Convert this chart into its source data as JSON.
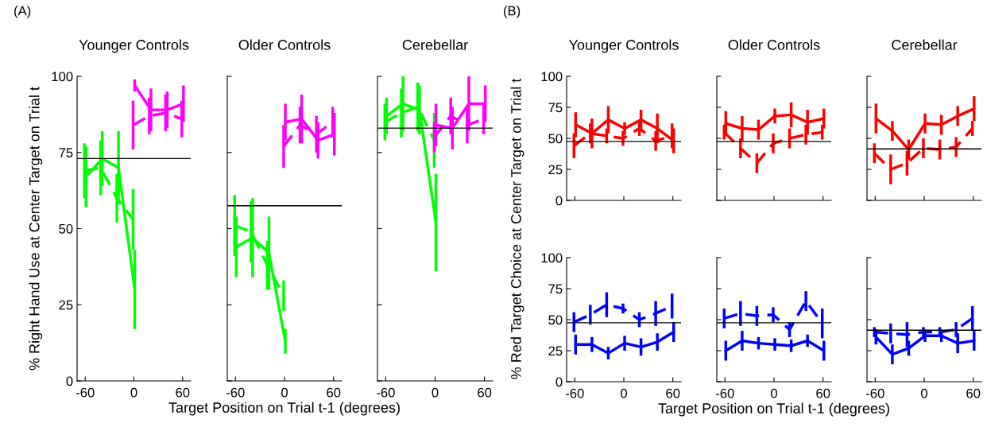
{
  "chart_data": [
    {
      "type": "line",
      "title": "Younger Controls",
      "ylabel": "% Right Hand Use at Center Target on Trial t",
      "annotations": [
        "(A)"
      ],
      "xlim": [
        -70,
        70
      ],
      "xticks": [
        -60,
        0,
        60
      ],
      "ylim": [
        0,
        100
      ],
      "yticks": [
        0,
        25,
        50,
        75,
        100
      ],
      "ref_lines": [
        {
          "axis": "y",
          "value": 73,
          "color": "#000000"
        }
      ],
      "series": [
        {
          "color": "#00ff00",
          "line_style": "solid",
          "x": [
            -59,
            -39,
            -19,
            1
          ],
          "values": [
            67,
            73,
            70,
            30
          ],
          "errors": [
            10,
            9,
            12,
            13
          ]
        },
        {
          "color": "#00ff00",
          "line_style": "dashed",
          "x": [
            -61,
            -41,
            -21,
            -1
          ],
          "values": [
            69,
            70,
            60,
            53
          ],
          "errors": [
            9,
            9,
            8,
            10
          ]
        },
        {
          "color": "#ff00ff",
          "line_style": "solid",
          "x": [
            1,
            21,
            41,
            61
          ],
          "values": [
            97,
            89,
            89,
            91
          ],
          "errors": [
            2,
            7,
            6,
            6
          ]
        },
        {
          "color": "#ff00ff",
          "line_style": "dashed",
          "x": [
            -1,
            19,
            39,
            59
          ],
          "values": [
            84,
            87,
            88,
            86
          ],
          "errors": [
            8,
            6,
            6,
            6
          ]
        }
      ]
    },
    {
      "type": "line",
      "title": "Older Controls",
      "xlabel": "Target Position on Trial t-1 (degrees)",
      "tick_labels": "x",
      "xlim": [
        -70,
        70
      ],
      "xticks": [
        -60,
        0,
        60
      ],
      "ylim": [
        0,
        100
      ],
      "yticks": [
        0,
        25,
        50,
        75,
        100
      ],
      "ref_lines": [
        {
          "axis": "y",
          "value": 57.5,
          "color": "#000000"
        }
      ],
      "series": [
        {
          "color": "#00ff00",
          "line_style": "solid",
          "x": [
            -59,
            -39,
            -19,
            1
          ],
          "values": [
            44,
            47,
            42,
            13
          ],
          "errors": [
            10,
            13,
            12,
            4
          ]
        },
        {
          "color": "#00ff00",
          "line_style": "dashed",
          "x": [
            -61,
            -41,
            -21,
            -1
          ],
          "values": [
            51,
            49,
            38,
            28
          ],
          "errors": [
            10,
            10,
            8,
            5
          ]
        },
        {
          "color": "#ff00ff",
          "line_style": "solid",
          "x": [
            1,
            21,
            41,
            61
          ],
          "values": [
            85,
            86,
            79,
            81
          ],
          "errors": [
            6,
            8,
            6,
            7
          ]
        },
        {
          "color": "#ff00ff",
          "line_style": "dashed",
          "x": [
            -1,
            19,
            39,
            59
          ],
          "values": [
            77,
            84,
            81,
            85
          ],
          "errors": [
            7,
            6,
            6,
            5
          ]
        }
      ]
    },
    {
      "type": "line",
      "title": "Cerebellar",
      "tick_labels": "x",
      "xlim": [
        -70,
        70
      ],
      "xticks": [
        -60,
        0,
        60
      ],
      "ylim": [
        0,
        100
      ],
      "yticks": [
        0,
        25,
        50,
        75,
        100
      ],
      "ref_lines": [
        {
          "axis": "y",
          "value": 83,
          "color": "#000000"
        }
      ],
      "series": [
        {
          "color": "#00ff00",
          "line_style": "solid",
          "x": [
            -59,
            -39,
            -19,
            1
          ],
          "values": [
            87,
            91,
            89,
            52
          ],
          "errors": [
            6,
            9,
            8,
            16
          ]
        },
        {
          "color": "#00ff00",
          "line_style": "dashed",
          "x": [
            -61,
            -41,
            -21,
            -1
          ],
          "values": [
            85,
            88,
            90,
            79
          ],
          "errors": [
            6,
            8,
            8,
            9
          ]
        },
        {
          "color": "#ff00ff",
          "line_style": "solid",
          "x": [
            1,
            21,
            41,
            61
          ],
          "values": [
            84,
            83,
            91,
            91
          ],
          "errors": [
            7,
            7,
            9,
            6
          ]
        },
        {
          "color": "#ff00ff",
          "line_style": "dashed",
          "x": [
            -1,
            19,
            39,
            59
          ],
          "values": [
            80,
            87,
            84,
            86
          ],
          "errors": [
            5,
            6,
            6,
            5
          ]
        }
      ]
    },
    {
      "type": "line",
      "title": "Younger Controls",
      "ylabel": "% Red Target Choice at Center Target on Trial t",
      "annotations": [
        "(B)"
      ],
      "tick_labels": "y",
      "xlim": [
        -70,
        70
      ],
      "xticks": [
        -60,
        0,
        60
      ],
      "ylim": [
        0,
        100
      ],
      "yticks": [
        0,
        25,
        50,
        75,
        100
      ],
      "ref_lines": [
        {
          "axis": "y",
          "value": 47.5,
          "color": "#000000"
        }
      ],
      "series": [
        {
          "color": "#ff0000",
          "line_style": "solid",
          "x": [
            -59,
            -39,
            -19,
            1,
            21,
            41,
            61
          ],
          "values": [
            61,
            54,
            65,
            58,
            65,
            58,
            48
          ],
          "errors": [
            10,
            12,
            11,
            5,
            8,
            12,
            10
          ]
        },
        {
          "color": "#ff0000",
          "line_style": "dashed",
          "x": [
            -61,
            -41,
            -21,
            -1,
            19,
            39,
            59
          ],
          "values": [
            44,
            54,
            52,
            50,
            58,
            48,
            52
          ],
          "errors": [
            10,
            8,
            6,
            6,
            6,
            8,
            10
          ]
        }
      ]
    },
    {
      "type": "line",
      "title": "Older Controls",
      "tick_labels": false,
      "xlim": [
        -70,
        70
      ],
      "xticks": [
        -60,
        0,
        60
      ],
      "ylim": [
        0,
        100
      ],
      "yticks": [
        0,
        25,
        50,
        75,
        100
      ],
      "ref_lines": [
        {
          "axis": "y",
          "value": 47.5,
          "color": "#000000"
        }
      ],
      "series": [
        {
          "color": "#ff0000",
          "line_style": "solid",
          "x": [
            -59,
            -39,
            -19,
            1,
            21,
            41,
            61
          ],
          "values": [
            62,
            58,
            57,
            68,
            69,
            63,
            66
          ],
          "errors": [
            10,
            10,
            8,
            6,
            10,
            10,
            8
          ]
        },
        {
          "color": "#ff0000",
          "line_style": "dashed",
          "x": [
            -61,
            -41,
            -21,
            -1,
            19,
            39,
            59
          ],
          "values": [
            55,
            42,
            30,
            46,
            50,
            53,
            55
          ],
          "errors": [
            6,
            8,
            8,
            8,
            8,
            8,
            6
          ]
        }
      ]
    },
    {
      "type": "line",
      "title": "Cerebellar",
      "tick_labels": false,
      "xlim": [
        -70,
        70
      ],
      "xticks": [
        -60,
        0,
        60
      ],
      "ylim": [
        0,
        100
      ],
      "yticks": [
        0,
        25,
        50,
        75,
        100
      ],
      "ref_lines": [
        {
          "axis": "y",
          "value": 41.5,
          "color": "#000000"
        }
      ],
      "series": [
        {
          "color": "#ff0000",
          "line_style": "solid",
          "x": [
            -59,
            -39,
            -19,
            1,
            21,
            41,
            61
          ],
          "values": [
            66,
            56,
            41,
            62,
            61,
            68,
            74
          ],
          "errors": [
            12,
            8,
            8,
            8,
            8,
            8,
            10
          ]
        },
        {
          "color": "#ff0000",
          "line_style": "dashed",
          "x": [
            -61,
            -41,
            -21,
            -1,
            19,
            39,
            59
          ],
          "values": [
            38,
            25,
            30,
            42,
            41,
            43,
            58
          ],
          "errors": [
            8,
            12,
            10,
            8,
            8,
            8,
            6
          ]
        }
      ]
    },
    {
      "type": "line",
      "xlim": [
        -70,
        70
      ],
      "xticks": [
        -60,
        0,
        60
      ],
      "ylim": [
        0,
        100
      ],
      "yticks": [
        0,
        25,
        50,
        75,
        100
      ],
      "ref_lines": [
        {
          "axis": "y",
          "value": 47.5,
          "color": "#000000"
        }
      ],
      "series": [
        {
          "color": "#0000ff",
          "line_style": "solid",
          "x": [
            -59,
            -39,
            -19,
            1,
            21,
            41,
            61
          ],
          "values": [
            30,
            30,
            23,
            31,
            28,
            32,
            40
          ],
          "errors": [
            8,
            6,
            5,
            6,
            7,
            7,
            8
          ]
        },
        {
          "color": "#0000ff",
          "line_style": "dashed",
          "x": [
            -61,
            -41,
            -21,
            -1,
            19,
            39,
            59
          ],
          "values": [
            48,
            54,
            62,
            59,
            50,
            55,
            61
          ],
          "errors": [
            8,
            8,
            10,
            4,
            6,
            10,
            10
          ]
        }
      ]
    },
    {
      "type": "line",
      "xlabel": "Target Position on Trial t-1 (degrees)",
      "tick_labels": "x",
      "xlim": [
        -70,
        70
      ],
      "xticks": [
        -60,
        0,
        60
      ],
      "ylim": [
        0,
        100
      ],
      "yticks": [
        0,
        25,
        50,
        75,
        100
      ],
      "ref_lines": [
        {
          "axis": "y",
          "value": 47.5,
          "color": "#000000"
        }
      ],
      "series": [
        {
          "color": "#0000ff",
          "line_style": "solid",
          "x": [
            -59,
            -39,
            -19,
            1,
            21,
            41,
            61
          ],
          "values": [
            25,
            33,
            31,
            30,
            29,
            33,
            25
          ],
          "errors": [
            8,
            8,
            5,
            5,
            5,
            5,
            8
          ]
        },
        {
          "color": "#0000ff",
          "line_style": "dashed",
          "x": [
            -61,
            -41,
            -21,
            -1,
            19,
            39,
            59
          ],
          "values": [
            51,
            55,
            53,
            54,
            42,
            65,
            47
          ],
          "errors": [
            8,
            10,
            8,
            6,
            6,
            8,
            12
          ]
        }
      ]
    },
    {
      "type": "line",
      "tick_labels": "x",
      "xlim": [
        -70,
        70
      ],
      "xticks": [
        -60,
        0,
        60
      ],
      "ylim": [
        0,
        100
      ],
      "yticks": [
        0,
        25,
        50,
        75,
        100
      ],
      "ref_lines": [
        {
          "axis": "y",
          "value": 41.5,
          "color": "#000000"
        }
      ],
      "series": [
        {
          "color": "#0000ff",
          "line_style": "solid",
          "x": [
            -59,
            -39,
            -19,
            1,
            21,
            41,
            61
          ],
          "values": [
            36,
            22,
            27,
            37,
            37,
            31,
            33
          ],
          "errors": [
            6,
            8,
            6,
            5,
            5,
            8,
            8
          ]
        },
        {
          "color": "#0000ff",
          "line_style": "dashed",
          "x": [
            -61,
            -41,
            -21,
            -1,
            19,
            39,
            59
          ],
          "values": [
            40,
            39,
            38,
            40,
            40,
            42,
            51
          ],
          "errors": [
            4,
            8,
            10,
            4,
            4,
            6,
            10
          ]
        }
      ]
    }
  ]
}
